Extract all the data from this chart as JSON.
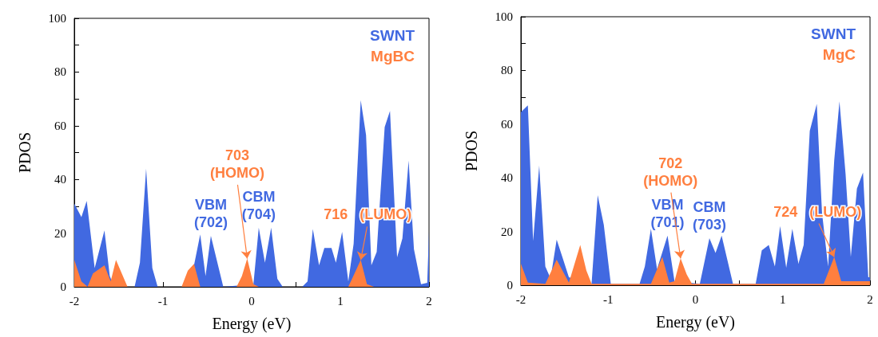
{
  "chart_data": [
    {
      "type": "area",
      "xlabel": "Energy (eV)",
      "ylabel": "PDOS",
      "xlim": [
        -2,
        2
      ],
      "ylim": [
        0,
        100
      ],
      "xticks": [
        -2,
        {
          "value": -1.5,
          "label": null
        },
        -1,
        {
          "value": -0.5,
          "label": null
        },
        0,
        {
          "value": 0.5,
          "label": null
        },
        1,
        {
          "value": 1.5,
          "label": null
        },
        2
      ],
      "yticks": [
        0,
        {
          "value": 10,
          "label": null
        },
        20,
        {
          "value": 30,
          "label": null
        },
        40,
        {
          "value": 50,
          "label": null
        },
        60,
        {
          "value": 70,
          "label": null
        },
        80,
        {
          "value": 90,
          "label": null
        },
        100
      ],
      "legend": "top right",
      "grid": false,
      "series": [
        {
          "name": "SWNT",
          "color": "#4169e1",
          "x": [
            -2,
            -1.92,
            -1.86,
            -1.77,
            -1.66,
            -1.6,
            -1.55,
            -1.32,
            -1.26,
            -1.19,
            -1.12,
            -1.06,
            -0.76,
            -0.65,
            -0.58,
            -0.52,
            -0.46,
            -0.32,
            0.02,
            0.08,
            0.15,
            0.22,
            0.29,
            0.35,
            0.57,
            0.63,
            0.69,
            0.76,
            0.82,
            0.9,
            0.95,
            1.02,
            1.09,
            1.15,
            1.23,
            1.29,
            1.35,
            1.41,
            1.5,
            1.56,
            1.64,
            1.7,
            1.77,
            1.83,
            1.91,
            1.98,
            2
          ],
          "values": [
            31,
            26,
            32,
            7,
            21,
            4,
            0,
            0,
            9,
            44,
            7,
            0,
            0,
            8,
            19.5,
            4,
            19,
            0,
            1,
            22,
            9,
            22,
            3,
            0,
            0,
            2,
            21.5,
            8,
            14.5,
            14.5,
            9,
            20.5,
            2,
            16,
            69.5,
            56.5,
            8,
            13,
            59.5,
            65.5,
            11,
            18,
            47,
            14,
            1,
            1.5,
            20.5
          ]
        },
        {
          "name": "MgBC",
          "color": "#ff7f3f",
          "x": [
            -2,
            -1.92,
            -1.85,
            -1.79,
            -1.66,
            -1.59,
            -1.53,
            -1.4,
            -0.79,
            -0.72,
            -0.65,
            -0.58,
            -0.17,
            -0.11,
            -0.05,
            0.02,
            0.08,
            1.09,
            1.16,
            1.23,
            1.3,
            1.38,
            2
          ],
          "values": [
            10,
            2,
            0,
            5,
            8,
            2,
            10,
            0,
            0,
            6,
            8.5,
            0,
            0,
            4,
            10.5,
            1,
            0,
            0,
            5,
            10,
            1,
            0,
            0
          ]
        }
      ],
      "annotations": [
        {
          "text": "VBM\n(702)",
          "x": -0.46,
          "y": 19
        },
        {
          "text": "CBM\n(704)",
          "x": 0.08,
          "y": 22
        },
        {
          "text": "703\n(HOMO)",
          "x": -0.05,
          "y": 10.5
        },
        {
          "text": "716   (LUMO)",
          "x": 1.23,
          "y": 10
        }
      ]
    },
    {
      "type": "area",
      "xlabel": "Energy (eV)",
      "ylabel": "PDOS",
      "xlim": [
        -2,
        2
      ],
      "ylim": [
        0,
        100
      ],
      "xticks": [
        -2,
        {
          "value": -1.5,
          "label": null
        },
        -1,
        {
          "value": -0.5,
          "label": null
        },
        0,
        {
          "value": 0.5,
          "label": null
        },
        1,
        {
          "value": 1.5,
          "label": null
        },
        2
      ],
      "yticks": [
        0,
        {
          "value": 10,
          "label": null
        },
        20,
        {
          "value": 30,
          "label": null
        },
        40,
        {
          "value": 50,
          "label": null
        },
        60,
        {
          "value": 70,
          "label": null
        },
        80,
        {
          "value": 90,
          "label": null
        },
        100
      ],
      "legend": "top right",
      "grid": false,
      "series": [
        {
          "name": "SWNT",
          "color": "#4169e1",
          "x": [
            -2,
            -1.92,
            -1.86,
            -1.79,
            -1.72,
            -1.66,
            -1.59,
            -1.52,
            -1.45,
            -1.19,
            -1.12,
            -1.05,
            -0.97,
            -0.64,
            -0.58,
            -0.51,
            -0.44,
            -0.32,
            -0.24,
            0.05,
            0.16,
            0.23,
            0.3,
            0.43,
            0.69,
            0.76,
            0.84,
            0.91,
            0.97,
            1.04,
            1.11,
            1.18,
            1.24,
            1.31,
            1.39,
            1.45,
            1.52,
            1.59,
            1.65,
            1.72,
            1.78,
            1.85,
            1.92,
            1.98,
            2
          ],
          "values": [
            64.5,
            67,
            16.5,
            44.5,
            7,
            2.5,
            17,
            10,
            3,
            0.5,
            33.5,
            22.5,
            0.5,
            0.5,
            7,
            21,
            6,
            18.5,
            1.5,
            0.5,
            17.5,
            12,
            18.5,
            0.5,
            0.5,
            13,
            15,
            7,
            22,
            6.5,
            21,
            8,
            15,
            57.5,
            67.5,
            27,
            7,
            46.5,
            68.5,
            41.5,
            10.5,
            36,
            42,
            3,
            3
          ]
        },
        {
          "name": "MgC",
          "color": "#ff7f3f",
          "x": [
            -2,
            -1.92,
            -1.72,
            -1.59,
            -1.45,
            -1.32,
            -1.25,
            -1.19,
            -0.51,
            -0.38,
            -0.3,
            -0.24,
            -0.17,
            -0.1,
            -0.04,
            1.47,
            1.59,
            1.67,
            2
          ],
          "values": [
            8,
            1,
            0.5,
            9.5,
            1,
            15,
            5.5,
            0.5,
            0.5,
            10.5,
            1,
            1.5,
            10,
            4,
            0.5,
            0.5,
            10.5,
            1.5,
            1.5
          ]
        }
      ],
      "annotations": [
        {
          "text": "VBM\n(701)",
          "x": -0.32,
          "y": 18.5
        },
        {
          "text": "CBM\n(703)",
          "x": 0.16,
          "y": 17.5
        },
        {
          "text": "702\n(HOMO)",
          "x": -0.17,
          "y": 10
        },
        {
          "text": "724   (LUMO)",
          "x": 1.59,
          "y": 10.5
        }
      ]
    }
  ]
}
